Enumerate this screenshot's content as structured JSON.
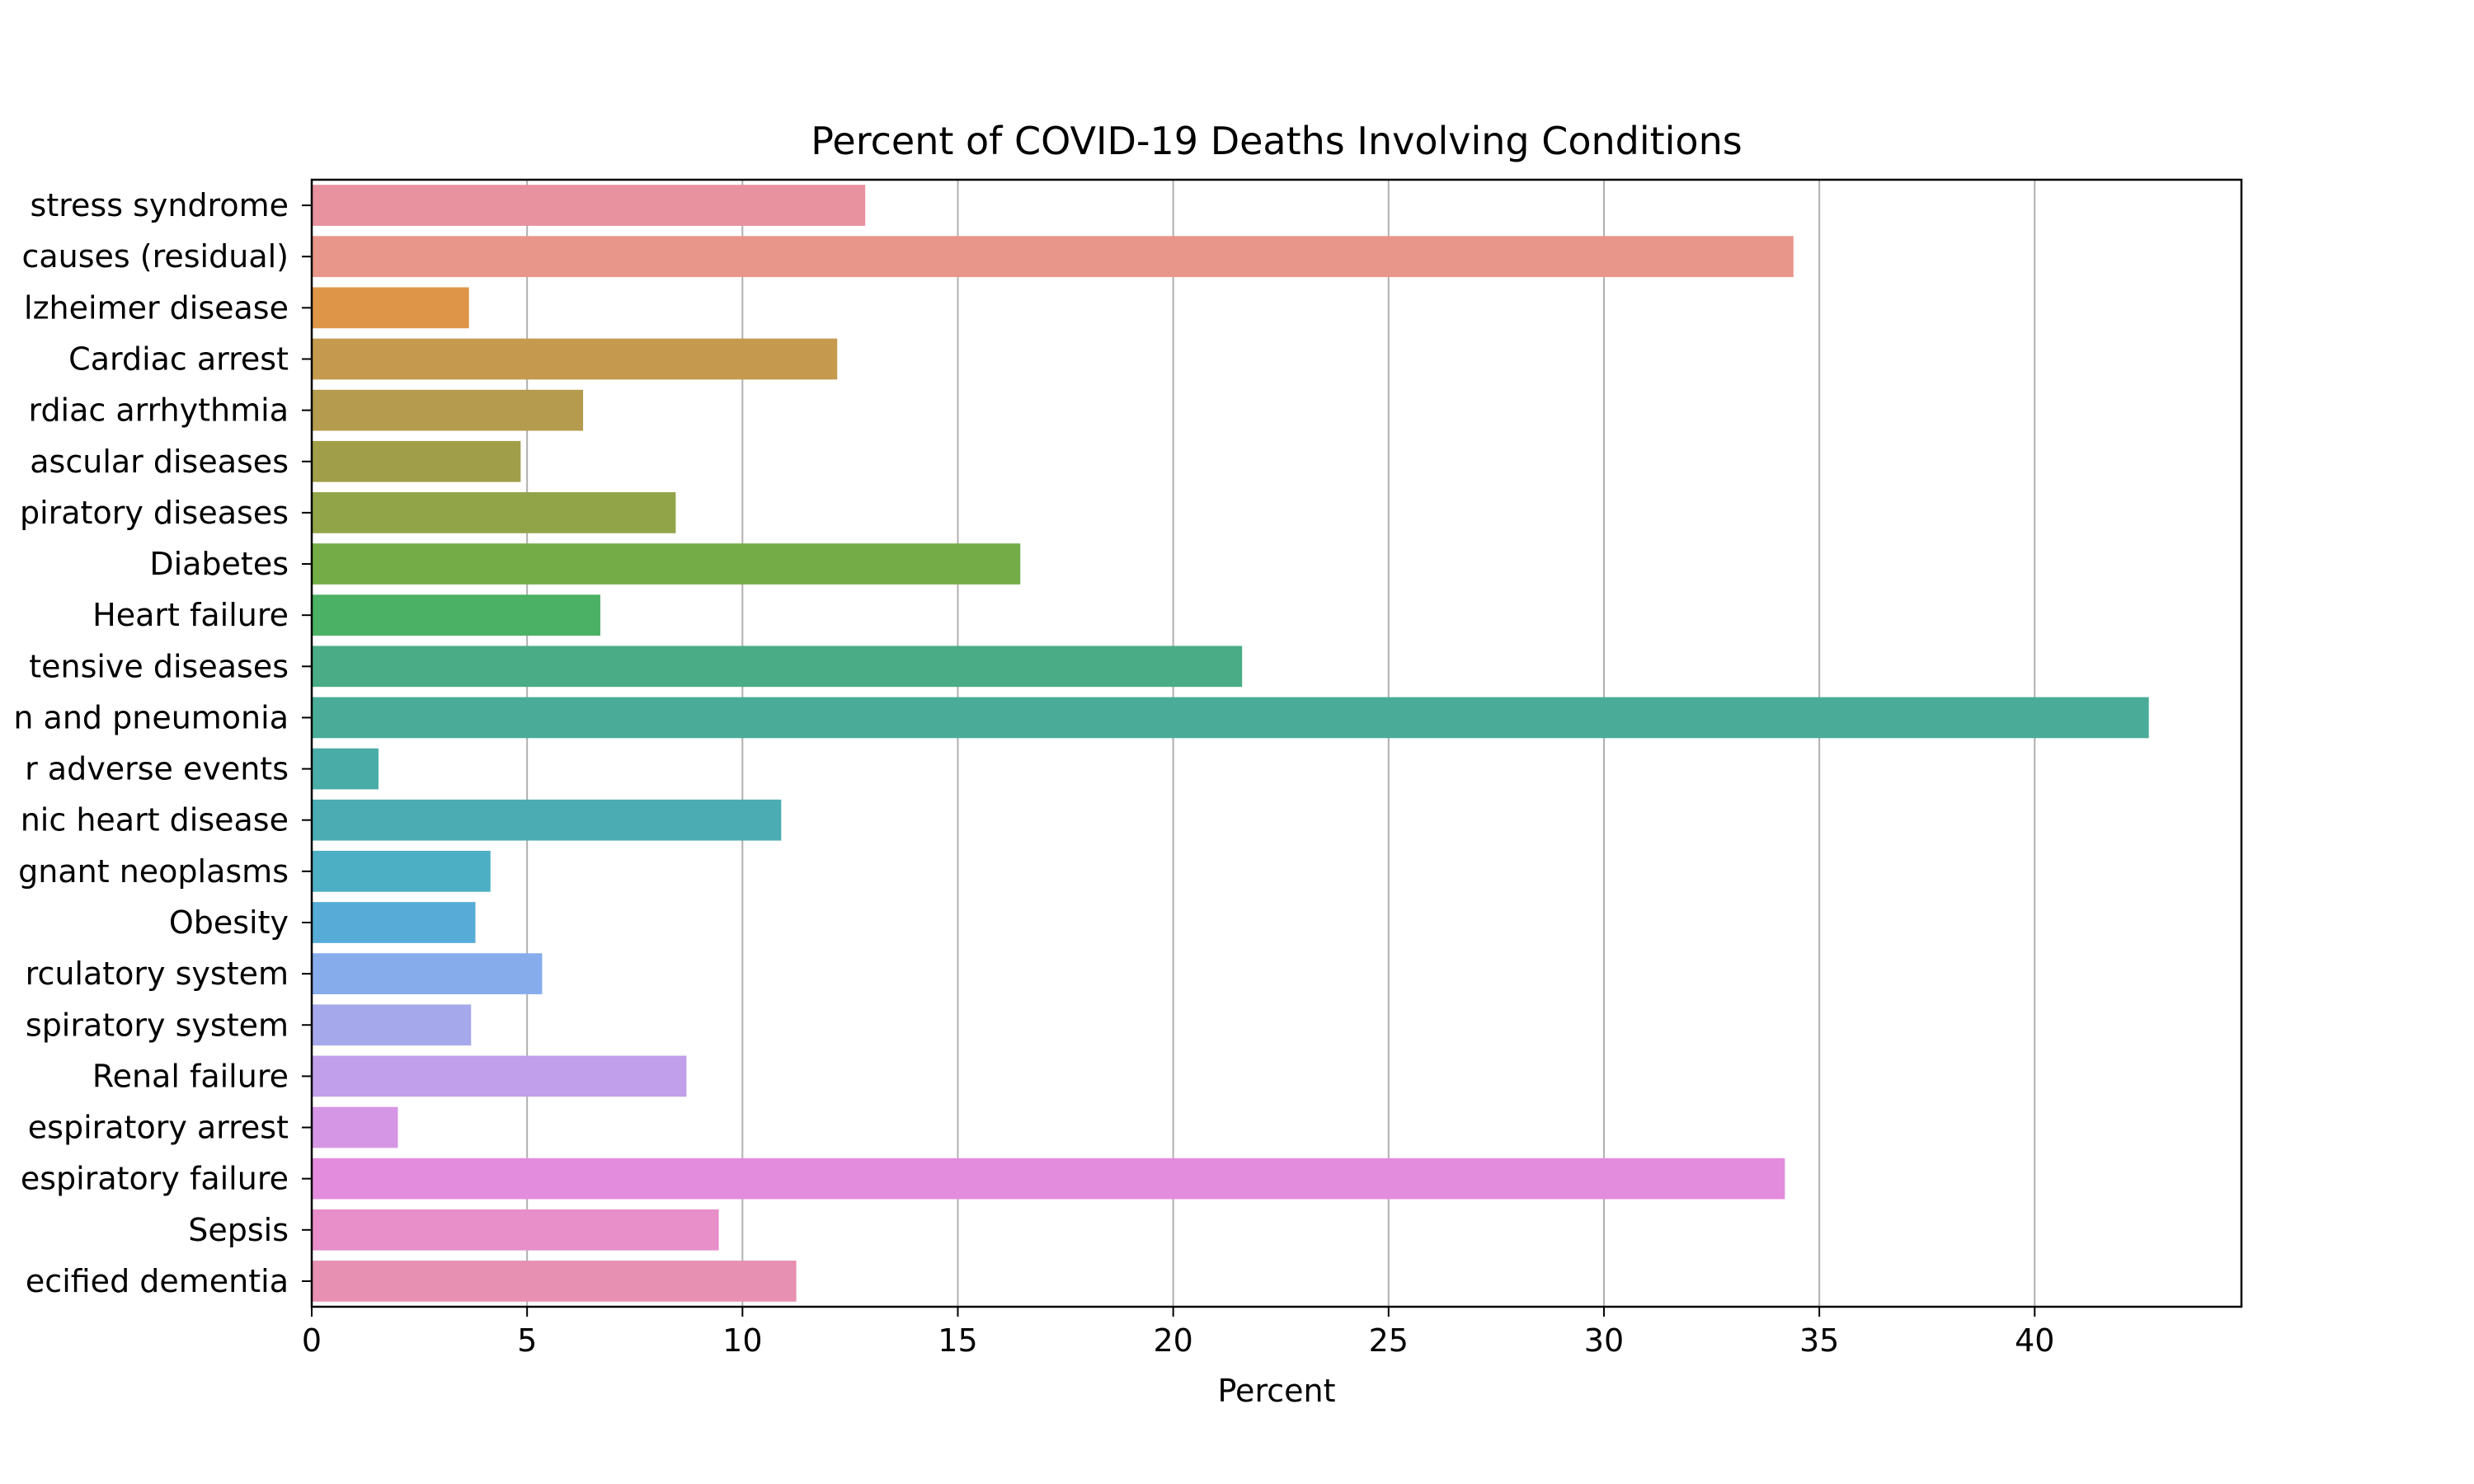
{
  "chart_data": {
    "type": "bar",
    "orientation": "horizontal",
    "title": "Percent of COVID-19 Deaths Involving Conditions",
    "xlabel": "Percent",
    "ylabel": "",
    "xlim": [
      0,
      44.8
    ],
    "xticks": [
      0,
      5,
      10,
      15,
      20,
      25,
      30,
      35,
      40
    ],
    "grid": "vertical lines at x ticks",
    "legend": "none",
    "categories": [
      "stress syndrome",
      "causes (residual)",
      "lzheimer disease",
      "Cardiac arrest",
      "rdiac arrhythmia",
      "ascular diseases",
      "piratory diseases",
      "Diabetes",
      "Heart failure",
      "tensive diseases",
      "n and pneumonia",
      "r adverse events",
      "nic heart disease",
      "gnant neoplasms",
      "Obesity",
      "rculatory system",
      "spiratory system",
      "Renal failure",
      "espiratory arrest",
      "espiratory failure",
      "Sepsis",
      "ecified dementia"
    ],
    "values": [
      12.85,
      34.4,
      3.65,
      12.2,
      6.3,
      4.85,
      8.45,
      16.45,
      6.7,
      21.6,
      42.65,
      1.55,
      10.9,
      4.15,
      3.8,
      5.35,
      3.7,
      8.7,
      2.0,
      34.2,
      9.45,
      11.25
    ],
    "colors": [
      "#e8929f",
      "#e8958a",
      "#df9548",
      "#c59a4e",
      "#b49b4d",
      "#a19e49",
      "#91a448",
      "#74ad47",
      "#4bb164",
      "#4aac86",
      "#4aac98",
      "#4aaca6",
      "#4bacb3",
      "#4dafc4",
      "#56acd6",
      "#86acec",
      "#a6a8ec",
      "#c19fea",
      "#d696e6",
      "#e38cdd",
      "#e88ec9",
      "#e890b1"
    ]
  }
}
